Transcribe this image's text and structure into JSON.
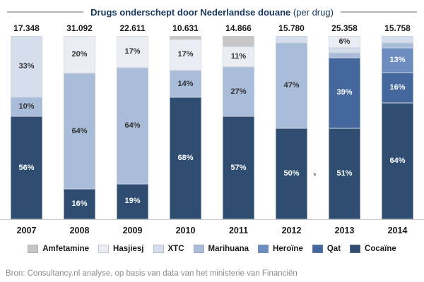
{
  "source": "Bron: Consultancy.nl analyse, op basis van data van het ministerie van Financiën",
  "chart_data": {
    "type": "bar",
    "subtype": "stacked-100-percent",
    "title_bold": "Drugs onderschept door Nederlandse douane",
    "title_regular": " (per drug)",
    "categories": [
      "2007",
      "2008",
      "2009",
      "2010",
      "2011",
      "2012",
      "2013",
      "2014"
    ],
    "totals": [
      "17.348",
      "31.092",
      "22.611",
      "10.631",
      "14.866",
      "15.780",
      "25.358",
      "15.758"
    ],
    "legend_position": "bottom",
    "grid": false,
    "legend": [
      {
        "name": "Amfetamine",
        "color": "#c7c6c6"
      },
      {
        "name": "Hasjiesj",
        "color": "#eaedf4"
      },
      {
        "name": "XTC",
        "color": "#d6deed"
      },
      {
        "name": "Marihuana",
        "color": "#a9bcd9"
      },
      {
        "name": "Heroïne",
        "color": "#6d8cbf"
      },
      {
        "name": "Qat",
        "color": "#44689e"
      },
      {
        "name": "Cocaïne",
        "color": "#2e4d71"
      }
    ],
    "white_label_drugs": [
      "Cocaïne",
      "Qat",
      "Heroïne"
    ],
    "dark_label_color": "#333333",
    "white_label_color": "#ffffff",
    "bars": [
      {
        "year": "2007",
        "total": "17.348",
        "segments": [
          {
            "drug": "Cocaïne",
            "pct": 56,
            "label": "56%"
          },
          {
            "drug": "Marihuana",
            "pct": 10,
            "label": "10%"
          },
          {
            "drug": "XTC",
            "pct": 33,
            "label": "33%"
          }
        ]
      },
      {
        "year": "2008",
        "total": "31.092",
        "segments": [
          {
            "drug": "Cocaïne",
            "pct": 16,
            "label": "16%"
          },
          {
            "drug": "Marihuana",
            "pct": 64,
            "label": "64%"
          },
          {
            "drug": "Hasjiesj",
            "pct": 20,
            "label": "20%"
          }
        ]
      },
      {
        "year": "2009",
        "total": "22.611",
        "segments": [
          {
            "drug": "Cocaïne",
            "pct": 19,
            "label": "19%"
          },
          {
            "drug": "Marihuana",
            "pct": 64,
            "label": "64%"
          },
          {
            "drug": "Hasjiesj",
            "pct": 17,
            "label": "17%"
          }
        ]
      },
      {
        "year": "2010",
        "total": "10.631",
        "segments": [
          {
            "drug": "Cocaïne",
            "pct": 68,
            "label": "68%"
          },
          {
            "drug": "Marihuana",
            "pct": 14,
            "label": "14%"
          },
          {
            "drug": "Hasjiesj",
            "pct": 17,
            "label": "17%"
          },
          {
            "drug": "Amfetamine",
            "pct": 1
          }
        ]
      },
      {
        "year": "2011",
        "total": "14.866",
        "segments": [
          {
            "drug": "Cocaïne",
            "pct": 57,
            "label": "57%"
          },
          {
            "drug": "Marihuana",
            "pct": 27,
            "label": "27%"
          },
          {
            "drug": "Hasjiesj",
            "pct": 11,
            "label": "11%"
          },
          {
            "drug": "Amfetamine",
            "pct": 5
          }
        ]
      },
      {
        "year": "2012",
        "total": "15.780",
        "annotation": "*",
        "segments": [
          {
            "drug": "Cocaïne",
            "pct": 50,
            "label": "50%"
          },
          {
            "drug": "Marihuana",
            "pct": 47,
            "label": "47%"
          },
          {
            "drug": "XTC",
            "pct": 3
          }
        ]
      },
      {
        "year": "2013",
        "total": "25.358",
        "segments": [
          {
            "drug": "Cocaïne",
            "pct": 51,
            "label": "51%"
          },
          {
            "drug": "Qat",
            "pct": 39,
            "label": "39%"
          },
          {
            "drug": "Marihuana",
            "pct": 2
          },
          {
            "drug": "XTC",
            "pct": 2
          },
          {
            "drug": "Hasjiesj",
            "pct": 6,
            "label": "6%"
          }
        ]
      },
      {
        "year": "2014",
        "total": "15.758",
        "segments": [
          {
            "drug": "Cocaïne",
            "pct": 64,
            "label": "64%"
          },
          {
            "drug": "Qat",
            "pct": 16,
            "label": "16%"
          },
          {
            "drug": "Heroïne",
            "pct": 13,
            "label": "13%"
          },
          {
            "drug": "Marihuana",
            "pct": 2
          },
          {
            "drug": "XTC",
            "pct": 3
          }
        ]
      }
    ]
  }
}
